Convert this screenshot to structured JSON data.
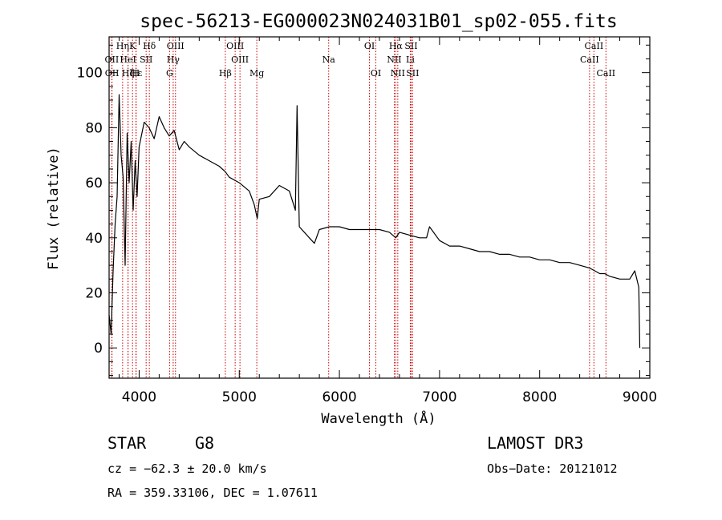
{
  "chart_data": {
    "type": "line",
    "title": "spec-56213-EG000023N024031B01_sp02-055.fits",
    "xlabel": "Wavelength (Å)",
    "ylabel": "Flux (relative)",
    "xlim": [
      3700,
      9100
    ],
    "ylim": [
      -11,
      113
    ],
    "x_ticks": [
      4000,
      5000,
      6000,
      7000,
      8000,
      9000
    ],
    "y_ticks": [
      0,
      20,
      40,
      60,
      80,
      100
    ],
    "series": [
      {
        "name": "spectrum",
        "color": "#000000",
        "x": [
          3700,
          3720,
          3740,
          3760,
          3780,
          3800,
          3820,
          3840,
          3860,
          3880,
          3900,
          3920,
          3940,
          3960,
          3980,
          4000,
          4050,
          4100,
          4150,
          4200,
          4250,
          4300,
          4350,
          4400,
          4450,
          4500,
          4600,
          4700,
          4800,
          4860,
          4900,
          5000,
          5100,
          5150,
          5180,
          5200,
          5300,
          5400,
          5500,
          5560,
          5577,
          5600,
          5700,
          5750,
          5800,
          5900,
          6000,
          6100,
          6200,
          6300,
          6400,
          6500,
          6563,
          6600,
          6700,
          6800,
          6870,
          6900,
          7000,
          7100,
          7200,
          7300,
          7400,
          7500,
          7600,
          7700,
          7800,
          7900,
          8000,
          8100,
          8200,
          8300,
          8400,
          8500,
          8550,
          8600,
          8650,
          8700,
          8800,
          8900,
          8950,
          8990,
          9000
        ],
        "y": [
          12,
          5,
          28,
          45,
          55,
          92,
          70,
          62,
          30,
          78,
          60,
          75,
          50,
          68,
          55,
          73,
          82,
          80,
          76,
          84,
          80,
          77,
          79,
          72,
          75,
          73,
          70,
          68,
          66,
          64,
          62,
          60,
          57,
          52,
          47,
          54,
          55,
          59,
          57,
          50,
          88,
          44,
          40,
          38,
          43,
          44,
          44,
          43,
          43,
          43,
          43,
          42,
          40,
          42,
          41,
          40,
          40,
          44,
          39,
          37,
          37,
          36,
          35,
          35,
          34,
          34,
          33,
          33,
          32,
          32,
          31,
          31,
          30,
          29,
          28,
          27,
          27,
          26,
          25,
          25,
          28,
          22,
          0
        ]
      }
    ],
    "spectral_lines": [
      {
        "label": "Hη",
        "wavelength": 3835,
        "row": 1
      },
      {
        "label": "K",
        "wavelength": 3934,
        "row": 1
      },
      {
        "label": "Hδ",
        "wavelength": 4102,
        "row": 1
      },
      {
        "label": "OIII",
        "wavelength": 4363,
        "row": 1
      },
      {
        "label": "OIII",
        "wavelength": 4959,
        "row": 1
      },
      {
        "label": "OI",
        "wavelength": 6300,
        "row": 1
      },
      {
        "label": "Hα",
        "wavelength": 6563,
        "row": 1
      },
      {
        "label": "SII",
        "wavelength": 6716,
        "row": 1
      },
      {
        "label": "CaII",
        "wavelength": 8542,
        "row": 1
      },
      {
        "label": "OII",
        "wavelength": 3727,
        "row": 2
      },
      {
        "label": "HeI",
        "wavelength": 3889,
        "row": 2
      },
      {
        "label": "SII",
        "wavelength": 4070,
        "row": 2
      },
      {
        "label": "Hγ",
        "wavelength": 4340,
        "row": 2
      },
      {
        "label": "OIII",
        "wavelength": 5007,
        "row": 2
      },
      {
        "label": "Na",
        "wavelength": 5893,
        "row": 2
      },
      {
        "label": "NII",
        "wavelength": 6548,
        "row": 2
      },
      {
        "label": "Li",
        "wavelength": 6708,
        "row": 2
      },
      {
        "label": "CaII",
        "wavelength": 8498,
        "row": 2
      },
      {
        "label": "OII",
        "wavelength": 3729,
        "row": 3
      },
      {
        "label": "Hζ",
        "wavelength": 3889,
        "row": 3
      },
      {
        "label": "Hε",
        "wavelength": 3970,
        "row": 3
      },
      {
        "label": "H",
        "wavelength": 3968,
        "row": 3
      },
      {
        "label": "G",
        "wavelength": 4304,
        "row": 3
      },
      {
        "label": "Hβ",
        "wavelength": 4861,
        "row": 3
      },
      {
        "label": "Mg",
        "wavelength": 5175,
        "row": 3
      },
      {
        "label": "OI",
        "wavelength": 6364,
        "row": 3
      },
      {
        "label": "NII",
        "wavelength": 6583,
        "row": 3
      },
      {
        "label": "SII",
        "wavelength": 6731,
        "row": 3
      },
      {
        "label": "CaII",
        "wavelength": 8662,
        "row": 3
      }
    ],
    "line_color": "#cc0000"
  },
  "info": {
    "object_class": "STAR",
    "subclass": "G8",
    "survey": "LAMOST DR3",
    "redshift_text": "cz = −62.3 ± 20.0 km/s",
    "obs_date_text": "Obs−Date: 20121012",
    "coords_text": "RA = 359.33106, DEC =   1.07611"
  }
}
